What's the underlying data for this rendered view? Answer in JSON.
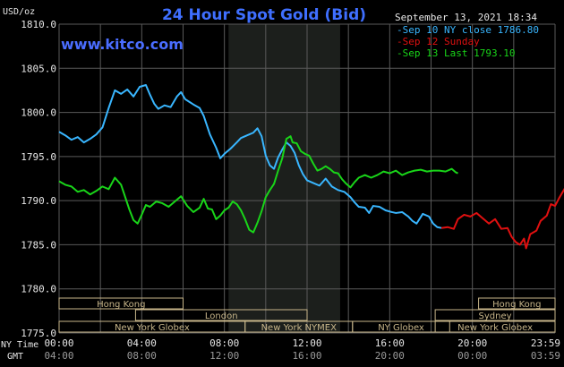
{
  "chart_data": {
    "type": "line",
    "title": "24 Hour Spot Gold (Bid)",
    "watermark": "www.kitco.com",
    "y_unit": "USD/oz",
    "timestamp": "September 13, 2021 18:34",
    "ylim": [
      1775.0,
      1810.0
    ],
    "y_ticks": [
      "1810.0",
      "1805.0",
      "1800.0",
      "1795.0",
      "1790.0",
      "1785.0",
      "1780.0",
      "1775.0"
    ],
    "x_row_labels": {
      "ny": "NY Time",
      "gmt": "GMT"
    },
    "x_ticks_ny": [
      "00:00",
      "04:00",
      "08:00",
      "12:00",
      "16:00",
      "20:00",
      "23:59"
    ],
    "x_ticks_gmt": [
      "04:00",
      "08:00",
      "12:00",
      "16:00",
      "20:00",
      "00:00",
      "03:59"
    ],
    "xlim_hours": [
      0,
      24
    ],
    "grid": true,
    "legend_position": "top-right",
    "shaded_period_hours": [
      8.2,
      13.6
    ],
    "colors": {
      "background": "#000000",
      "grid": "#5a5a5a",
      "shade": "#1c1f1c",
      "title": "#3f6fff",
      "watermark": "#4a6dff",
      "text": "#e6e6e6",
      "session_box": "#c8b68a"
    },
    "series": [
      {
        "name": "Sep 10 NY close 1786.80",
        "color": "#39b6ff",
        "points": [
          [
            0,
            1797.8
          ],
          [
            0.3,
            1797.4
          ],
          [
            0.6,
            1796.9
          ],
          [
            0.9,
            1797.2
          ],
          [
            1.2,
            1796.6
          ],
          [
            1.5,
            1797.0
          ],
          [
            1.8,
            1797.5
          ],
          [
            2.1,
            1798.3
          ],
          [
            2.4,
            1800.5
          ],
          [
            2.7,
            1802.5
          ],
          [
            3.0,
            1802.1
          ],
          [
            3.3,
            1802.6
          ],
          [
            3.6,
            1801.8
          ],
          [
            3.9,
            1802.9
          ],
          [
            4.2,
            1803.1
          ],
          [
            4.4,
            1802.0
          ],
          [
            4.6,
            1801.0
          ],
          [
            4.8,
            1800.4
          ],
          [
            5.1,
            1800.8
          ],
          [
            5.4,
            1800.6
          ],
          [
            5.7,
            1801.8
          ],
          [
            5.9,
            1802.3
          ],
          [
            6.1,
            1801.5
          ],
          [
            6.3,
            1801.2
          ],
          [
            6.5,
            1800.9
          ],
          [
            6.8,
            1800.5
          ],
          [
            7.0,
            1799.6
          ],
          [
            7.3,
            1797.5
          ],
          [
            7.6,
            1796.0
          ],
          [
            7.8,
            1794.8
          ],
          [
            8.0,
            1795.3
          ],
          [
            8.3,
            1795.9
          ],
          [
            8.6,
            1796.6
          ],
          [
            8.8,
            1797.1
          ],
          [
            9.1,
            1797.4
          ],
          [
            9.4,
            1797.7
          ],
          [
            9.6,
            1798.2
          ],
          [
            9.8,
            1797.3
          ],
          [
            10.0,
            1795.1
          ],
          [
            10.2,
            1794.0
          ],
          [
            10.4,
            1793.6
          ],
          [
            10.6,
            1794.9
          ],
          [
            10.8,
            1795.8
          ],
          [
            11.0,
            1796.6
          ],
          [
            11.2,
            1796.2
          ],
          [
            11.4,
            1795.4
          ],
          [
            11.6,
            1794.0
          ],
          [
            11.8,
            1793.0
          ],
          [
            12.0,
            1792.3
          ],
          [
            12.3,
            1792.0
          ],
          [
            12.6,
            1791.7
          ],
          [
            12.9,
            1792.5
          ],
          [
            13.2,
            1791.6
          ],
          [
            13.5,
            1791.2
          ],
          [
            13.8,
            1791.0
          ],
          [
            14.1,
            1790.4
          ],
          [
            14.3,
            1789.8
          ],
          [
            14.5,
            1789.3
          ],
          [
            14.8,
            1789.2
          ],
          [
            15.0,
            1788.6
          ],
          [
            15.2,
            1789.4
          ],
          [
            15.5,
            1789.3
          ],
          [
            15.8,
            1788.9
          ],
          [
            16.1,
            1788.7
          ],
          [
            16.3,
            1788.6
          ],
          [
            16.6,
            1788.7
          ],
          [
            16.9,
            1788.2
          ],
          [
            17.1,
            1787.7
          ],
          [
            17.3,
            1787.4
          ],
          [
            17.6,
            1788.5
          ],
          [
            17.9,
            1788.2
          ],
          [
            18.1,
            1787.4
          ],
          [
            18.3,
            1787.0
          ],
          [
            18.5,
            1786.9
          ]
        ]
      },
      {
        "name": "Sep 12 Sunday",
        "color": "#e01010",
        "points": [
          [
            18.5,
            1786.9
          ],
          [
            18.8,
            1787.0
          ],
          [
            19.1,
            1786.8
          ],
          [
            19.3,
            1787.9
          ],
          [
            19.6,
            1788.4
          ],
          [
            19.9,
            1788.2
          ],
          [
            20.2,
            1788.6
          ],
          [
            20.5,
            1788.0
          ],
          [
            20.8,
            1787.4
          ],
          [
            21.1,
            1787.9
          ],
          [
            21.4,
            1786.8
          ],
          [
            21.7,
            1786.9
          ],
          [
            21.9,
            1785.9
          ],
          [
            22.1,
            1785.3
          ],
          [
            22.3,
            1785.0
          ],
          [
            22.5,
            1785.7
          ],
          [
            22.6,
            1784.6
          ],
          [
            22.8,
            1786.2
          ],
          [
            23.1,
            1786.6
          ],
          [
            23.3,
            1787.7
          ],
          [
            23.6,
            1788.3
          ],
          [
            23.8,
            1789.6
          ],
          [
            24.0,
            1789.4
          ],
          [
            24.2,
            1790.3
          ],
          [
            24.5,
            1791.5
          ],
          [
            24.8,
            1792.1
          ],
          [
            25.0,
            1792.3
          ]
        ]
      },
      {
        "name": "Sep 13 Last 1793.10",
        "color": "#19d519",
        "points": [
          [
            0,
            1792.2
          ],
          [
            0.3,
            1791.8
          ],
          [
            0.6,
            1791.6
          ],
          [
            0.9,
            1791.0
          ],
          [
            1.2,
            1791.2
          ],
          [
            1.5,
            1790.7
          ],
          [
            1.8,
            1791.1
          ],
          [
            2.1,
            1791.6
          ],
          [
            2.4,
            1791.3
          ],
          [
            2.7,
            1792.6
          ],
          [
            3.0,
            1791.8
          ],
          [
            3.2,
            1790.4
          ],
          [
            3.4,
            1789.0
          ],
          [
            3.6,
            1787.8
          ],
          [
            3.8,
            1787.4
          ],
          [
            4.0,
            1788.4
          ],
          [
            4.2,
            1789.5
          ],
          [
            4.4,
            1789.3
          ],
          [
            4.7,
            1789.9
          ],
          [
            5.0,
            1789.7
          ],
          [
            5.3,
            1789.3
          ],
          [
            5.6,
            1789.9
          ],
          [
            5.9,
            1790.5
          ],
          [
            6.2,
            1789.4
          ],
          [
            6.5,
            1788.7
          ],
          [
            6.8,
            1789.2
          ],
          [
            7.0,
            1790.2
          ],
          [
            7.2,
            1789.1
          ],
          [
            7.4,
            1789.0
          ],
          [
            7.6,
            1787.9
          ],
          [
            7.8,
            1788.3
          ],
          [
            8.0,
            1788.9
          ],
          [
            8.2,
            1789.2
          ],
          [
            8.4,
            1789.9
          ],
          [
            8.6,
            1789.6
          ],
          [
            8.8,
            1788.9
          ],
          [
            9.0,
            1787.9
          ],
          [
            9.2,
            1786.7
          ],
          [
            9.4,
            1786.4
          ],
          [
            9.6,
            1787.5
          ],
          [
            9.8,
            1788.8
          ],
          [
            10.0,
            1790.4
          ],
          [
            10.2,
            1791.2
          ],
          [
            10.4,
            1791.9
          ],
          [
            10.6,
            1793.4
          ],
          [
            10.8,
            1794.8
          ],
          [
            11.0,
            1797.0
          ],
          [
            11.2,
            1797.3
          ],
          [
            11.3,
            1796.6
          ],
          [
            11.5,
            1796.5
          ],
          [
            11.7,
            1795.6
          ],
          [
            11.9,
            1795.3
          ],
          [
            12.1,
            1795.1
          ],
          [
            12.3,
            1794.2
          ],
          [
            12.5,
            1793.4
          ],
          [
            12.7,
            1793.6
          ],
          [
            12.9,
            1793.9
          ],
          [
            13.1,
            1793.6
          ],
          [
            13.3,
            1793.2
          ],
          [
            13.5,
            1793.1
          ],
          [
            13.7,
            1792.4
          ],
          [
            13.9,
            1791.9
          ],
          [
            14.1,
            1791.5
          ],
          [
            14.3,
            1792.1
          ],
          [
            14.5,
            1792.6
          ],
          [
            14.8,
            1792.9
          ],
          [
            15.1,
            1792.6
          ],
          [
            15.4,
            1792.9
          ],
          [
            15.7,
            1793.3
          ],
          [
            16.0,
            1793.1
          ],
          [
            16.3,
            1793.4
          ],
          [
            16.6,
            1792.9
          ],
          [
            16.9,
            1793.2
          ],
          [
            17.2,
            1793.4
          ],
          [
            17.5,
            1793.5
          ],
          [
            17.8,
            1793.3
          ],
          [
            18.1,
            1793.4
          ],
          [
            18.4,
            1793.4
          ],
          [
            18.7,
            1793.3
          ],
          [
            19.0,
            1793.6
          ],
          [
            19.2,
            1793.2
          ],
          [
            19.3,
            1793.1
          ]
        ]
      }
    ],
    "sessions": [
      {
        "label": "Hong Kong",
        "row": 0,
        "start": 0,
        "end": 6.0
      },
      {
        "label": "London",
        "row": 1,
        "start": 3.7,
        "end": 12.0
      },
      {
        "label": "New York Globex",
        "row": 2,
        "start": 0,
        "end": 9.0
      },
      {
        "label": "New York NYMEX",
        "row": 2,
        "start": 9.0,
        "end": 14.2
      },
      {
        "label": "NY Globex",
        "row": 2,
        "start": 14.2,
        "end": 18.9
      },
      {
        "label": "Hong Kong",
        "row": 0,
        "start": 20.3,
        "end": 24.0
      },
      {
        "label": "Sydney",
        "row": 1,
        "start": 18.2,
        "end": 24.0
      },
      {
        "label": "New York Globex",
        "row": 2,
        "start": 18.2,
        "end": 24.0
      }
    ]
  }
}
